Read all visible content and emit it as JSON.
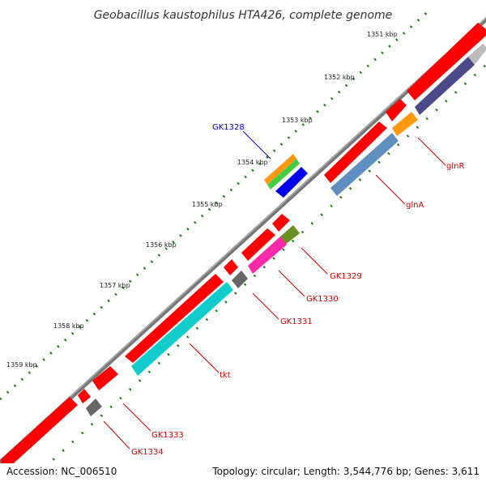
{
  "title": "Geobacillus kaustophilus HTA426, complete genome",
  "kbp_ticks": [
    "1351 kbp",
    "1352 kbp",
    "1353 kbp",
    "1354 kbp",
    "1355 kbp",
    "1356 kbp",
    "1357 kbp",
    "1358 kbp",
    "1359 kbp"
  ],
  "gene_labels": {
    "glnR": "glnR",
    "glnA": "glnA",
    "GK1328": "GK1328",
    "GK1329": "GK1329",
    "GK1330": "GK1330",
    "GK1331": "GK1331",
    "tkt": "tkt",
    "GK1333": "GK1333",
    "GK1334": "GK1334"
  },
  "colors": {
    "backbone": "#888888",
    "red": "#ff0000",
    "label_red": "#cc0000",
    "label_blue": "#0000cc",
    "tick_green": "#1a7a1a"
  },
  "footer": {
    "accession": "Accession: NC_006510",
    "summary": "Topology: circular; Length: 3,544,776 bp; Genes: 3,611"
  }
}
